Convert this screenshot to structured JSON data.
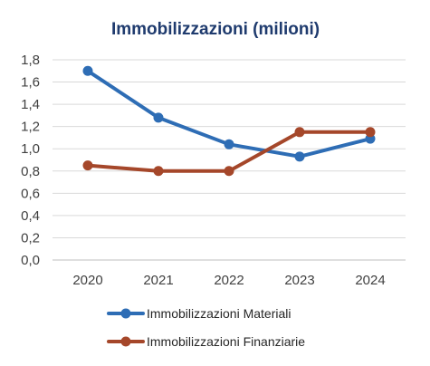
{
  "chart_data": {
    "type": "line",
    "title": "Immobilizzazioni (milioni)",
    "xlabel": "",
    "ylabel": "",
    "categories": [
      "2020",
      "2021",
      "2022",
      "2023",
      "2024"
    ],
    "y_tick_labels": [
      "0,0",
      "0,2",
      "0,4",
      "0,6",
      "0,8",
      "1,0",
      "1,2",
      "1,4",
      "1,6",
      "1,8"
    ],
    "ylim": [
      0,
      1.8
    ],
    "grid": true,
    "legend_position": "bottom",
    "series": [
      {
        "name": "Immobilizzazioni Materiali",
        "color": "#2e6db5",
        "values": [
          1.7,
          1.28,
          1.04,
          0.93,
          1.09
        ]
      },
      {
        "name": "Immobilizzazioni Finanziarie",
        "color": "#a5472a",
        "values": [
          0.85,
          0.8,
          0.8,
          1.15,
          1.15
        ]
      }
    ]
  }
}
